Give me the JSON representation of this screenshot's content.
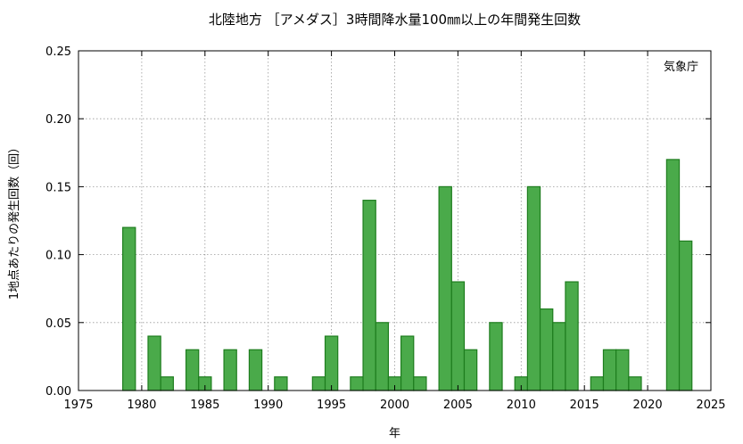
{
  "chart_data": {
    "type": "bar",
    "title": "北陸地方 ［アメダス］3時間降水量100㎜以上の年間発生回数",
    "xlabel": "年",
    "ylabel": "1地点あたりの発生回数（回）",
    "annotation": "気象庁",
    "xlim": [
      1975,
      2025
    ],
    "ylim": [
      0,
      0.25
    ],
    "x_ticks": [
      "1975",
      "1980",
      "1985",
      "1990",
      "1995",
      "2000",
      "2005",
      "2010",
      "2015",
      "2020",
      "2025"
    ],
    "y_ticks": [
      "0.00",
      "0.05",
      "0.10",
      "0.15",
      "0.20",
      "0.25"
    ],
    "grid": true,
    "bar_color": "#4aaa4a",
    "bar_edge_color": "#1e7d1e",
    "x": [
      1979,
      1981,
      1982,
      1984,
      1985,
      1987,
      1989,
      1991,
      1994,
      1995,
      1997,
      1998,
      1999,
      2000,
      2001,
      2002,
      2004,
      2005,
      2006,
      2008,
      2010,
      2011,
      2012,
      2013,
      2014,
      2016,
      2017,
      2018,
      2019,
      2022,
      2023
    ],
    "values": [
      0.12,
      0.04,
      0.01,
      0.03,
      0.01,
      0.03,
      0.03,
      0.01,
      0.01,
      0.04,
      0.01,
      0.14,
      0.05,
      0.01,
      0.04,
      0.01,
      0.15,
      0.08,
      0.03,
      0.05,
      0.01,
      0.15,
      0.06,
      0.05,
      0.08,
      0.01,
      0.03,
      0.03,
      0.01,
      0.17,
      0.11
    ]
  }
}
